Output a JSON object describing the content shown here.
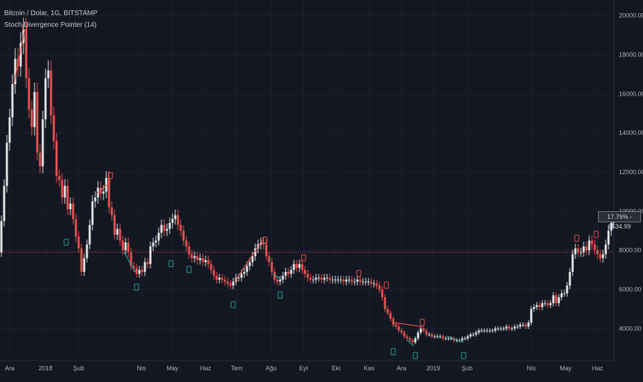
{
  "legend": {
    "symbol": "Bitcoin / Dolar, 1G, BITSTAMP",
    "indicator": "Stoch Divergence Pointer (14)"
  },
  "last_price_badge": {
    "percent": "17.79%",
    "price": "9534.99"
  },
  "colors": {
    "background": "#131722",
    "grid": "#1e222d",
    "up_candle": "#e8e8e8",
    "down_candle": "#ef5350",
    "bear_divergence": "#ef5350",
    "bull_divergence": "#26a69a",
    "ref_line": "#ef5350",
    "axis_text": "#b2b5be"
  },
  "chart_data": {
    "type": "candlestick",
    "y_ticks": [
      "20000.00",
      "18000.00",
      "16000.00",
      "14000.00",
      "12000.00",
      "10000.00",
      "8000.00",
      "6000.00",
      "4000.00"
    ],
    "ylim": [
      2500,
      20800
    ],
    "x_ticks": [
      "Ara",
      "2018",
      "Şub",
      "Nis",
      "May",
      "Haz",
      "Tem",
      "Ağu",
      "Eyl",
      "Eki",
      "Kas",
      "Ara",
      "2019",
      "Şub",
      "Nis",
      "May",
      "Haz"
    ],
    "reference_line": 7900,
    "price_series": [
      [
        0,
        7900
      ],
      [
        4,
        9500
      ],
      [
        8,
        11300
      ],
      [
        12,
        13500
      ],
      [
        16,
        14800
      ],
      [
        20,
        16500
      ],
      [
        24,
        17800
      ],
      [
        28,
        17400
      ],
      [
        32,
        18600
      ],
      [
        36,
        19300
      ],
      [
        40,
        16800
      ],
      [
        44,
        15200
      ],
      [
        48,
        14300
      ],
      [
        52,
        16100
      ],
      [
        56,
        13000
      ],
      [
        60,
        12300
      ],
      [
        64,
        14700
      ],
      [
        68,
        16800
      ],
      [
        72,
        17200
      ],
      [
        76,
        14900
      ],
      [
        80,
        13600
      ],
      [
        84,
        11800
      ],
      [
        88,
        11600
      ],
      [
        92,
        10700
      ],
      [
        96,
        11300
      ],
      [
        100,
        10100
      ],
      [
        104,
        10400
      ],
      [
        108,
        9600
      ],
      [
        112,
        8700
      ],
      [
        116,
        8100
      ],
      [
        120,
        6900
      ],
      [
        124,
        7600
      ],
      [
        128,
        8300
      ],
      [
        132,
        9300
      ],
      [
        136,
        10500
      ],
      [
        140,
        10700
      ],
      [
        144,
        11200
      ],
      [
        148,
        10900
      ],
      [
        152,
        11000
      ],
      [
        156,
        11700
      ],
      [
        160,
        10200
      ],
      [
        164,
        9800
      ],
      [
        168,
        8800
      ],
      [
        172,
        9100
      ],
      [
        176,
        8500
      ],
      [
        180,
        8000
      ],
      [
        184,
        8400
      ],
      [
        188,
        7900
      ],
      [
        192,
        7200
      ],
      [
        196,
        7100
      ],
      [
        200,
        6800
      ],
      [
        204,
        7000
      ],
      [
        208,
        6900
      ],
      [
        212,
        7400
      ],
      [
        216,
        7300
      ],
      [
        220,
        8200
      ],
      [
        224,
        8400
      ],
      [
        228,
        8500
      ],
      [
        232,
        8900
      ],
      [
        236,
        9300
      ],
      [
        240,
        9000
      ],
      [
        244,
        9100
      ],
      [
        248,
        9400
      ],
      [
        252,
        9600
      ],
      [
        256,
        9800
      ],
      [
        260,
        9300
      ],
      [
        264,
        9000
      ],
      [
        268,
        8500
      ],
      [
        272,
        8200
      ],
      [
        276,
        7800
      ],
      [
        280,
        7600
      ],
      [
        284,
        7700
      ],
      [
        288,
        7500
      ],
      [
        292,
        7600
      ],
      [
        296,
        7400
      ],
      [
        300,
        7500
      ],
      [
        304,
        7300
      ],
      [
        308,
        7000
      ],
      [
        312,
        6700
      ],
      [
        316,
        6500
      ],
      [
        320,
        6600
      ],
      [
        324,
        6500
      ],
      [
        328,
        6400
      ],
      [
        332,
        6300
      ],
      [
        336,
        6200
      ],
      [
        340,
        6400
      ],
      [
        344,
        6600
      ],
      [
        348,
        6600
      ],
      [
        352,
        6800
      ],
      [
        356,
        6900
      ],
      [
        360,
        7200
      ],
      [
        364,
        7400
      ],
      [
        368,
        7700
      ],
      [
        372,
        8100
      ],
      [
        376,
        8300
      ],
      [
        380,
        8400
      ],
      [
        384,
        8300
      ],
      [
        388,
        7700
      ],
      [
        392,
        7400
      ],
      [
        396,
        6900
      ],
      [
        400,
        6500
      ],
      [
        404,
        6400
      ],
      [
        408,
        6500
      ],
      [
        412,
        6700
      ],
      [
        416,
        6900
      ],
      [
        420,
        6800
      ],
      [
        424,
        7000
      ],
      [
        428,
        7300
      ],
      [
        432,
        7100
      ],
      [
        436,
        7300
      ],
      [
        440,
        7000
      ],
      [
        444,
        6800
      ],
      [
        448,
        6600
      ],
      [
        452,
        6500
      ],
      [
        456,
        6500
      ],
      [
        460,
        6600
      ],
      [
        464,
        6600
      ],
      [
        468,
        6500
      ],
      [
        472,
        6600
      ],
      [
        476,
        6600
      ],
      [
        480,
        6500
      ],
      [
        484,
        6500
      ],
      [
        488,
        6500
      ],
      [
        492,
        6500
      ],
      [
        496,
        6500
      ],
      [
        500,
        6400
      ],
      [
        504,
        6500
      ],
      [
        508,
        6500
      ],
      [
        512,
        6400
      ],
      [
        516,
        6400
      ],
      [
        520,
        6500
      ],
      [
        524,
        6400
      ],
      [
        528,
        6400
      ],
      [
        532,
        6400
      ],
      [
        536,
        6400
      ],
      [
        540,
        6300
      ],
      [
        544,
        6300
      ],
      [
        548,
        6200
      ],
      [
        552,
        6000
      ],
      [
        556,
        5600
      ],
      [
        560,
        5000
      ],
      [
        564,
        4800
      ],
      [
        568,
        4500
      ],
      [
        572,
        4200
      ],
      [
        576,
        4100
      ],
      [
        580,
        3900
      ],
      [
        584,
        3800
      ],
      [
        588,
        3600
      ],
      [
        592,
        3500
      ],
      [
        596,
        3400
      ],
      [
        600,
        3300
      ],
      [
        604,
        3500
      ],
      [
        608,
        3800
      ],
      [
        612,
        4000
      ],
      [
        616,
        3900
      ],
      [
        620,
        3700
      ],
      [
        624,
        3700
      ],
      [
        628,
        3600
      ],
      [
        632,
        3600
      ],
      [
        636,
        3600
      ],
      [
        640,
        3600
      ],
      [
        644,
        3500
      ],
      [
        648,
        3500
      ],
      [
        652,
        3500
      ],
      [
        656,
        3500
      ],
      [
        660,
        3400
      ],
      [
        664,
        3400
      ],
      [
        668,
        3400
      ],
      [
        672,
        3500
      ],
      [
        676,
        3500
      ],
      [
        680,
        3600
      ],
      [
        684,
        3700
      ],
      [
        688,
        3700
      ],
      [
        692,
        3800
      ],
      [
        696,
        3900
      ],
      [
        700,
        3900
      ],
      [
        704,
        3900
      ],
      [
        708,
        3900
      ],
      [
        712,
        3900
      ],
      [
        716,
        3900
      ],
      [
        720,
        4000
      ],
      [
        724,
        4000
      ],
      [
        728,
        4000
      ],
      [
        732,
        4000
      ],
      [
        736,
        4100
      ],
      [
        740,
        4000
      ],
      [
        744,
        4000
      ],
      [
        748,
        4100
      ],
      [
        752,
        4100
      ],
      [
        756,
        4200
      ],
      [
        760,
        4200
      ],
      [
        764,
        4100
      ],
      [
        768,
        4300
      ],
      [
        772,
        5000
      ],
      [
        776,
        5100
      ],
      [
        780,
        5200
      ],
      [
        784,
        5100
      ],
      [
        788,
        5300
      ],
      [
        792,
        5300
      ],
      [
        796,
        5200
      ],
      [
        800,
        5300
      ],
      [
        804,
        5700
      ],
      [
        808,
        5300
      ],
      [
        812,
        5600
      ],
      [
        816,
        5800
      ],
      [
        820,
        5800
      ],
      [
        824,
        6200
      ],
      [
        828,
        6900
      ],
      [
        832,
        7800
      ],
      [
        836,
        8100
      ],
      [
        840,
        7900
      ],
      [
        844,
        7900
      ],
      [
        848,
        8200
      ],
      [
        852,
        8000
      ],
      [
        856,
        8500
      ],
      [
        860,
        8300
      ],
      [
        864,
        8000
      ],
      [
        868,
        7800
      ],
      [
        872,
        7600
      ],
      [
        876,
        7800
      ],
      [
        880,
        8300
      ],
      [
        884,
        9000
      ],
      [
        888,
        9400
      ],
      [
        890,
        9535
      ]
    ],
    "divergence_lines": [
      {
        "type": "bearish",
        "from": [
          20,
          16500
        ],
        "to": [
          36,
          19300
        ]
      },
      {
        "type": "bearish",
        "from": [
          140,
          10900
        ],
        "to": [
          160,
          11500
        ]
      },
      {
        "type": "bullish",
        "from": [
          180,
          7900
        ],
        "to": [
          196,
          6900
        ]
      },
      {
        "type": "bearish",
        "from": [
          340,
          6400
        ],
        "to": [
          380,
          8500
        ]
      },
      {
        "type": "bullish",
        "from": [
          396,
          6800
        ],
        "to": [
          408,
          6500
        ]
      },
      {
        "type": "bearish",
        "from": [
          572,
          4300
        ],
        "to": [
          612,
          4100
        ]
      },
      {
        "type": "bullish",
        "from": [
          648,
          3600
        ],
        "to": [
          672,
          3300
        ]
      },
      {
        "type": "bullish",
        "from": [
          590,
          3400
        ],
        "to": [
          600,
          3100
        ]
      }
    ],
    "signal_markers": [
      {
        "type": "bearish",
        "x": 36,
        "value": 19400
      },
      {
        "type": "bearish",
        "x": 160,
        "value": 11800
      },
      {
        "type": "bearish",
        "x": 384,
        "value": 8500
      },
      {
        "type": "bearish",
        "x": 440,
        "value": 7600
      },
      {
        "type": "bearish",
        "x": 520,
        "value": 6800
      },
      {
        "type": "bearish",
        "x": 560,
        "value": 6200
      },
      {
        "type": "bearish",
        "x": 612,
        "value": 4300
      },
      {
        "type": "bearish",
        "x": 836,
        "value": 8600
      },
      {
        "type": "bearish",
        "x": 864,
        "value": 8800
      },
      {
        "type": "bullish",
        "x": 96,
        "value": 8400
      },
      {
        "type": "bullish",
        "x": 198,
        "value": 6100
      },
      {
        "type": "bullish",
        "x": 248,
        "value": 7300
      },
      {
        "type": "bullish",
        "x": 274,
        "value": 7000
      },
      {
        "type": "bullish",
        "x": 338,
        "value": 5200
      },
      {
        "type": "bullish",
        "x": 406,
        "value": 5700
      },
      {
        "type": "bullish",
        "x": 570,
        "value": 2800
      },
      {
        "type": "bullish",
        "x": 602,
        "value": 2600
      },
      {
        "type": "bullish",
        "x": 672,
        "value": 2600
      }
    ]
  }
}
